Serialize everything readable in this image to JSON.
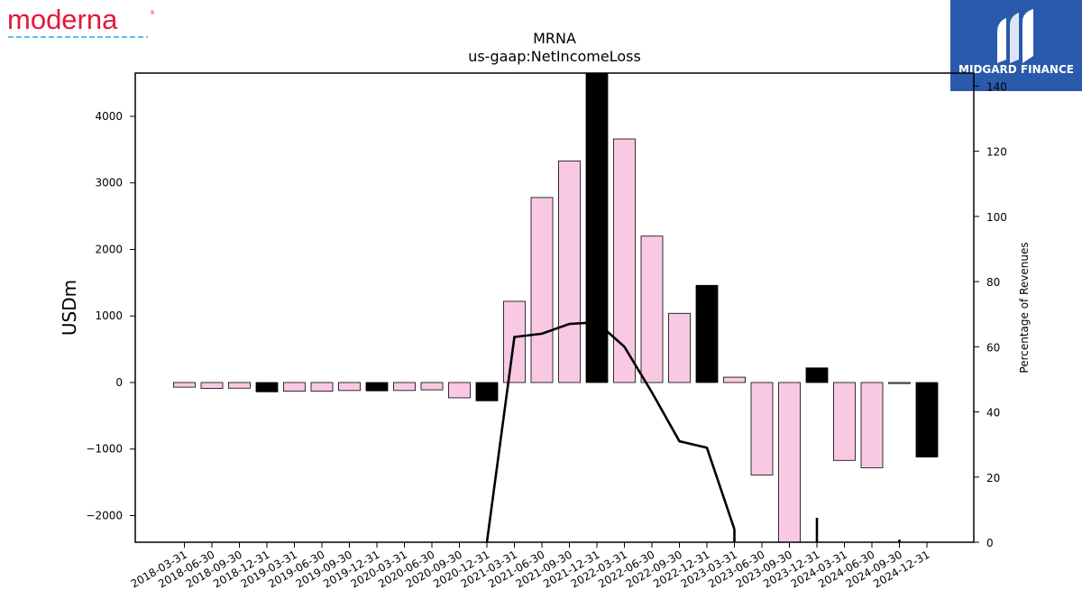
{
  "brand": {
    "company_logo_text": "moderna",
    "publisher_logo_text": "MIDGARD FINANCE"
  },
  "colors": {
    "bar_quarter": "#f9c9e4",
    "bar_annual": "#000000",
    "line": "#000000",
    "moderna_red": "#e31837",
    "moderna_blue": "#5bc2e7",
    "publisher_bg": "#2a5aab"
  },
  "chart_data": {
    "type": "bar",
    "title": "MRNA",
    "subtitle": "us-gaap:NetIncomeLoss",
    "ylabel": "USDm",
    "y2label": "Percentage of Revenues",
    "ylim": [
      -2400,
      4650
    ],
    "y2lim": [
      0,
      144
    ],
    "yticks": [
      -2000,
      -1000,
      0,
      1000,
      2000,
      3000,
      4000
    ],
    "y2ticks": [
      0,
      20,
      40,
      60,
      80,
      100,
      120,
      140
    ],
    "ytick_labels": [
      "−2000",
      "−1000",
      "0",
      "1000",
      "2000",
      "3000",
      "4000"
    ],
    "y2tick_labels": [
      "0",
      "20",
      "40",
      "60",
      "80",
      "100",
      "120",
      "140"
    ],
    "categories": [
      "2018-03-31",
      "2018-06-30",
      "2018-09-30",
      "2018-12-31",
      "2019-03-31",
      "2019-06-30",
      "2019-09-30",
      "2019-12-31",
      "2020-03-31",
      "2020-06-30",
      "2020-09-30",
      "2020-12-31",
      "2021-03-31",
      "2021-06-30",
      "2021-09-30",
      "2021-12-31",
      "2022-03-31",
      "2022-06-30",
      "2022-09-30",
      "2022-12-31",
      "2023-03-31",
      "2023-06-30",
      "2023-09-30",
      "2023-12-31",
      "2024-03-31",
      "2024-06-30",
      "2024-09-30",
      "2024-12-31"
    ],
    "series": [
      {
        "kind": "bar",
        "values": [
          -70,
          -90,
          -85,
          -140,
          -130,
          -130,
          -120,
          -125,
          -120,
          -110,
          -230,
          -275,
          1220,
          2780,
          3330,
          4650,
          3660,
          2200,
          1040,
          1460,
          80,
          -1390,
          -2400,
          220,
          -1170,
          -1280,
          -15,
          -1120
        ],
        "annual": [
          false,
          false,
          false,
          true,
          false,
          false,
          false,
          true,
          false,
          false,
          false,
          true,
          false,
          false,
          false,
          true,
          false,
          false,
          false,
          true,
          false,
          false,
          false,
          true,
          false,
          false,
          false,
          true
        ]
      },
      {
        "kind": "line",
        "axis": "secondary",
        "values": [
          null,
          null,
          null,
          null,
          null,
          null,
          null,
          null,
          null,
          null,
          null,
          0,
          63,
          64,
          67,
          67.5,
          60,
          46,
          31,
          29,
          4,
          null,
          null,
          7.5,
          null,
          null,
          0.8,
          null
        ]
      }
    ]
  }
}
